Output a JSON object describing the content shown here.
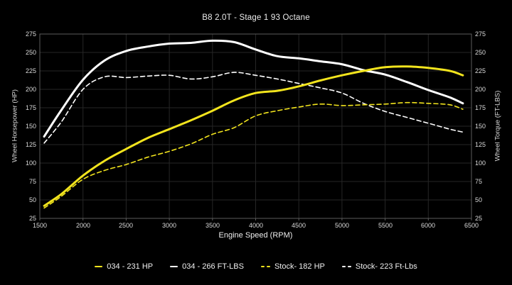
{
  "title": "B8 2.0T - Stage 1 93 Octane",
  "colors": {
    "background": "#000000",
    "grid": "#262626",
    "axis_border": "#5c5c5c",
    "tick_text": "#d9d9d9",
    "yellow": "#f2e41d",
    "white": "#ffffff"
  },
  "chart_data": {
    "type": "line",
    "title": "B8 2.0T - Stage 1 93 Octane",
    "xlabel": "Engine Speed (RPM)",
    "ylabel_left": "Wheel Horsepower (HP)",
    "ylabel_right": "Wheel Torque (FT-LBS)",
    "xlim": [
      1500,
      6500
    ],
    "ylim": [
      25,
      275
    ],
    "x_ticks": [
      1500,
      2000,
      2500,
      3000,
      3500,
      4000,
      4500,
      5000,
      5500,
      6000,
      6500
    ],
    "y_ticks": [
      25,
      50,
      75,
      100,
      125,
      150,
      175,
      200,
      225,
      250,
      275
    ],
    "grid": true,
    "legend_position": "bottom",
    "x": [
      1550,
      1750,
      2000,
      2250,
      2500,
      2750,
      3000,
      3250,
      3500,
      3750,
      4000,
      4250,
      4500,
      4750,
      5000,
      5250,
      5500,
      5750,
      6000,
      6250,
      6400
    ],
    "series": [
      {
        "key": "stock-torque",
        "name": "Stock- 223 Ft-Lbs",
        "color": "white",
        "style": "dashed",
        "axis": "right",
        "peak": 223,
        "values": [
          127,
          156,
          200,
          217,
          216,
          218,
          219,
          214,
          217,
          223,
          219,
          214,
          208,
          202,
          195,
          181,
          170,
          162,
          154,
          146,
          142
        ]
      },
      {
        "key": "stock-hp",
        "name": "Stock- 182 HP",
        "color": "yellow",
        "style": "dashed",
        "axis": "left",
        "peak": 182,
        "values": [
          39,
          55,
          78,
          90,
          98,
          108,
          116,
          126,
          139,
          148,
          164,
          171,
          176,
          180,
          178,
          179,
          180,
          182,
          181,
          179,
          173
        ]
      },
      {
        "key": "034-torque",
        "name": "034 - 266 FT-LBS",
        "color": "white",
        "style": "solid",
        "axis": "right",
        "peak": 266,
        "values": [
          136,
          172,
          213,
          239,
          252,
          258,
          262,
          263,
          266,
          264,
          254,
          245,
          242,
          238,
          234,
          226,
          220,
          210,
          199,
          189,
          181
        ]
      },
      {
        "key": "034-hp",
        "name": "034 - 231 HP",
        "color": "yellow",
        "style": "solid",
        "axis": "left",
        "peak": 231,
        "values": [
          42,
          58,
          83,
          103,
          119,
          134,
          146,
          158,
          171,
          185,
          195,
          198,
          204,
          212,
          219,
          225,
          230,
          231,
          229,
          225,
          219
        ]
      }
    ],
    "legend_order": [
      "034-hp",
      "034-torque",
      "stock-hp",
      "stock-torque"
    ]
  }
}
